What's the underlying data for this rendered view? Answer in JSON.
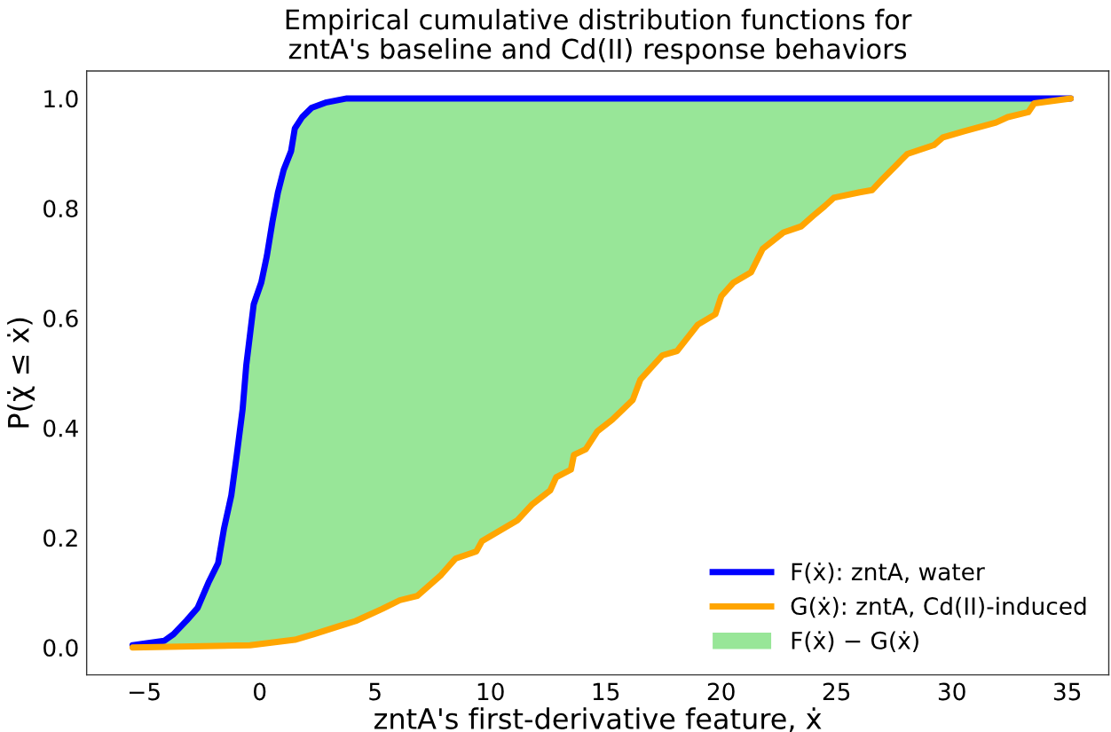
{
  "chart_data": {
    "type": "line",
    "title": "Empirical cumulative distribution functions for\nzntA's baseline and Cd(II) response behaviors",
    "xlabel": "zntA's first-derivative feature, ẋ",
    "ylabel": "P(χ̇ ≤ ẋ)",
    "xlim": [
      -7.5,
      36.8
    ],
    "ylim": [
      -0.05,
      1.05
    ],
    "xticks": [
      {
        "value": -5,
        "label": "−5"
      },
      0,
      5,
      10,
      15,
      20,
      25,
      30,
      35
    ],
    "yticks": [
      {
        "value": 0,
        "label": "0.0"
      },
      {
        "value": 0.2,
        "label": "0.2"
      },
      {
        "value": 0.4,
        "label": "0.4"
      },
      {
        "value": 0.6,
        "label": "0.6"
      },
      {
        "value": 0.8,
        "label": "0.8"
      },
      {
        "value": 1,
        "label": "1.0"
      }
    ],
    "grid": false,
    "legend": "bottom right",
    "marker": "none",
    "line_style": "solid",
    "series": [
      {
        "name": "F(ẋ): zntA, water",
        "color": "#0000ff",
        "x": [
          -5.51,
          -4.14,
          -3.74,
          -3.17,
          -2.69,
          -2.2,
          -1.8,
          -1.55,
          -1.23,
          -0.99,
          -0.74,
          -0.58,
          -0.26,
          0.07,
          0.31,
          0.55,
          0.79,
          1.04,
          1.36,
          1.52,
          1.84,
          2.25,
          2.9,
          3.78,
          35.15
        ],
        "values": [
          0.004,
          0.012,
          0.024,
          0.049,
          0.072,
          0.12,
          0.154,
          0.216,
          0.277,
          0.352,
          0.434,
          0.515,
          0.625,
          0.665,
          0.713,
          0.775,
          0.829,
          0.87,
          0.904,
          0.945,
          0.966,
          0.983,
          0.993,
          1.0,
          1.0
        ]
      },
      {
        "name": "G(ẋ): zntA, Cd(II)-induced",
        "color": "#ffa500",
        "x": [
          -5.51,
          -0.42,
          1.52,
          2.33,
          3.6,
          4.15,
          5.3,
          6.07,
          6.83,
          7.86,
          8.49,
          9.39,
          9.64,
          10.41,
          11.18,
          11.82,
          12.59,
          12.85,
          13.49,
          13.62,
          14.13,
          14.64,
          15.28,
          16.17,
          16.5,
          17.45,
          18.09,
          18.99,
          19.75,
          20.01,
          20.52,
          21.29,
          21.8,
          22.7,
          23.47,
          23.98,
          24.49,
          24.88,
          26.0,
          26.54,
          26.92,
          27.56,
          28.07,
          29.22,
          29.61,
          30.5,
          31.91,
          32.42,
          33.31,
          33.57,
          35.15
        ],
        "values": [
          0.0,
          0.004,
          0.014,
          0.024,
          0.041,
          0.048,
          0.07,
          0.086,
          0.094,
          0.132,
          0.162,
          0.175,
          0.194,
          0.213,
          0.232,
          0.261,
          0.286,
          0.31,
          0.324,
          0.351,
          0.361,
          0.394,
          0.415,
          0.451,
          0.488,
          0.532,
          0.54,
          0.588,
          0.607,
          0.64,
          0.664,
          0.683,
          0.726,
          0.756,
          0.767,
          0.786,
          0.804,
          0.819,
          0.829,
          0.833,
          0.85,
          0.877,
          0.899,
          0.915,
          0.929,
          0.94,
          0.956,
          0.966,
          0.975,
          0.991,
          1.0
        ]
      },
      {
        "name": "F(ẋ) − G(ẋ)",
        "type": "area",
        "color": "#98e698"
      }
    ]
  }
}
